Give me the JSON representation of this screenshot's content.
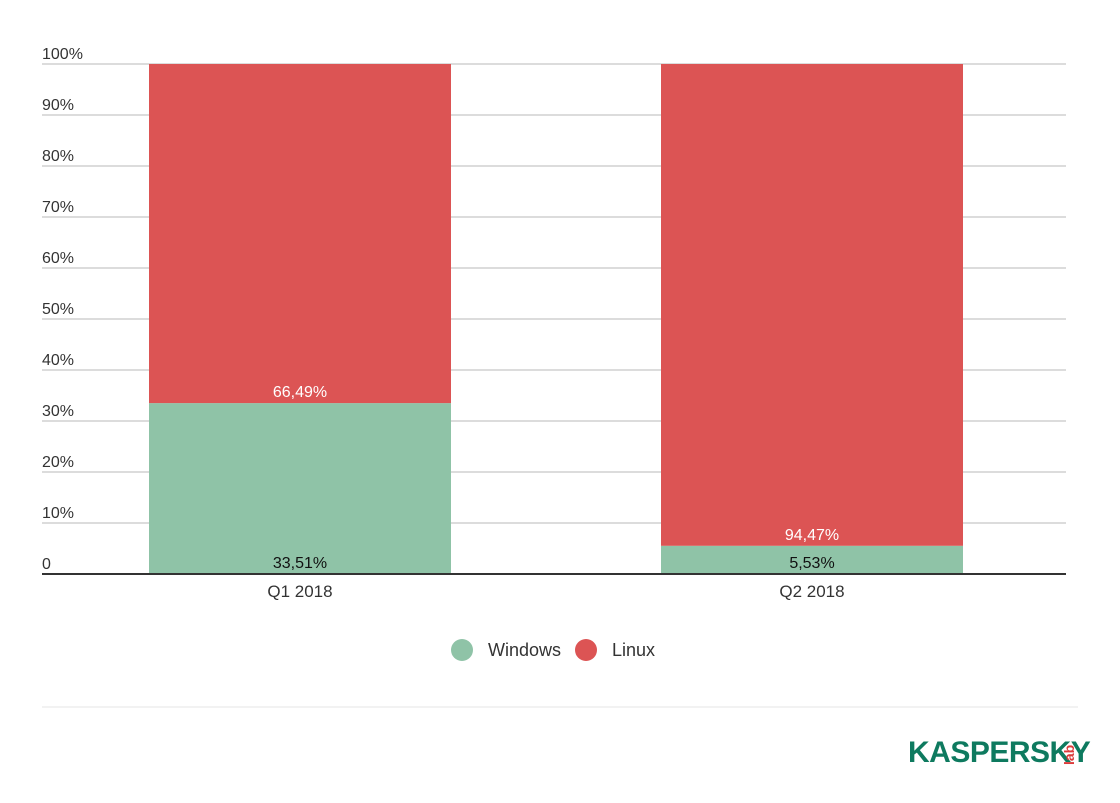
{
  "chart_data": {
    "type": "bar",
    "stacked": true,
    "categories": [
      "Q1 2018",
      "Q2 2018"
    ],
    "series": [
      {
        "name": "Windows",
        "color": "#8fc3a7",
        "values": [
          33.51,
          5.53
        ],
        "labels": [
          "33,51%",
          "5,53%"
        ]
      },
      {
        "name": "Linux",
        "color": "#dc5454",
        "values": [
          66.49,
          94.47
        ],
        "labels": [
          "66,49%",
          "94,47%"
        ]
      }
    ],
    "ylim": [
      0,
      100
    ],
    "yticks": [
      0,
      10,
      20,
      30,
      40,
      50,
      60,
      70,
      80,
      90,
      100
    ],
    "ytick_labels": [
      "0",
      "10%",
      "20%",
      "30%",
      "40%",
      "50%",
      "60%",
      "70%",
      "80%",
      "90%",
      "100%"
    ],
    "grid": true,
    "legend_position": "bottom-center",
    "title": "",
    "xlabel": "",
    "ylabel": ""
  },
  "logo": {
    "text": "KASPERSKY",
    "sub": "lab",
    "color": "#0e7a5f",
    "accent_color": "#dc3b3b"
  }
}
